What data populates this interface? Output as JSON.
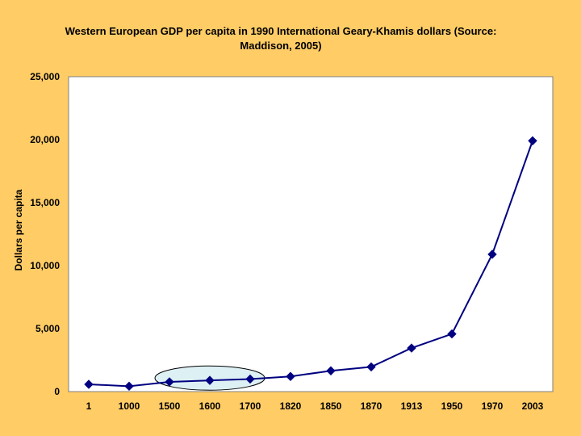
{
  "chart_data": {
    "type": "line",
    "title_lines": [
      "Western European GDP per capita in 1990 International Geary-Khamis dollars (Source:",
      "Maddison, 2005)"
    ],
    "xlabel": "",
    "ylabel": "Dollars per capita",
    "categories": [
      "1",
      "1000",
      "1500",
      "1600",
      "1700",
      "1820",
      "1850",
      "1870",
      "1913",
      "1950",
      "1970",
      "2003"
    ],
    "series": [
      {
        "name": "Western Europe GDP per capita",
        "values": [
          576,
          427,
          771,
          889,
          997,
          1202,
          1650,
          1960,
          3457,
          4578,
          10900,
          19912
        ]
      }
    ],
    "ylim": [
      0,
      25000
    ],
    "yticks": [
      0,
      5000,
      10000,
      15000,
      20000,
      25000
    ],
    "ytick_labels": [
      "0",
      "5,000",
      "10,000",
      "15,000",
      "20,000",
      "25,000"
    ],
    "grid": false,
    "legend": "none",
    "highlight": {
      "from_category": "1500",
      "to_category": "1700",
      "shape": "ellipse"
    },
    "colors": {
      "background": "#FFCC66",
      "plot_area": "#FFFFFF",
      "line": "#000080",
      "marker": "#000080",
      "highlight_fill": "#DDF0F4"
    }
  }
}
